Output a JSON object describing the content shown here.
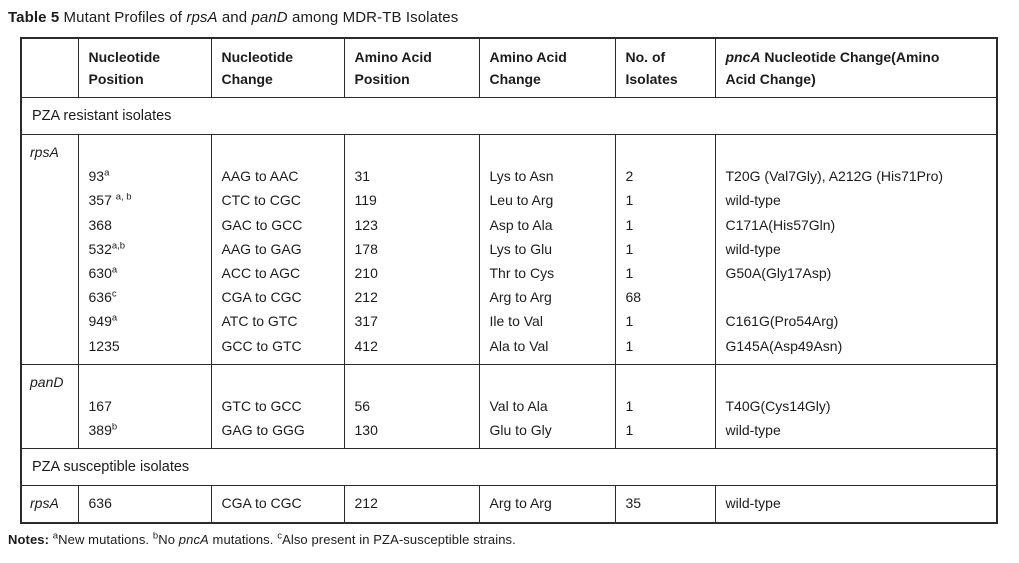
{
  "colors": {
    "background": "#ffffff",
    "text": "#1c1c1c",
    "border": "#2b2b2b"
  },
  "caption": {
    "segments": [
      {
        "text": "Table 5",
        "bold": true
      },
      {
        "text": " Mutant Profiles of "
      },
      {
        "text": "rpsA",
        "italic": true
      },
      {
        "text": " and "
      },
      {
        "text": "panD",
        "italic": true
      },
      {
        "text": " among MDR-TB Isolates"
      }
    ]
  },
  "table": {
    "columns": [
      {
        "name": "gene",
        "segments": []
      },
      {
        "name": "nucleotide-position",
        "segments": [
          {
            "text": "Nucleotide Position",
            "bold": true
          }
        ]
      },
      {
        "name": "nucleotide-change",
        "segments": [
          {
            "text": "Nucleotide Change",
            "bold": true
          }
        ]
      },
      {
        "name": "amino-acid-position",
        "segments": [
          {
            "text": "Amino Acid Position",
            "bold": true
          }
        ]
      },
      {
        "name": "amino-acid-change",
        "segments": [
          {
            "text": "Amino Acid Change",
            "bold": true
          }
        ]
      },
      {
        "name": "no-of-isolates",
        "segments": [
          {
            "text": "No. of Isolates",
            "bold": true
          }
        ]
      },
      {
        "name": "pnca-change",
        "segments": [
          {
            "text": "pncA",
            "bold": true,
            "italic": true
          },
          {
            "text": " Nucleotide Change(Amino",
            "bold": true
          },
          {
            "br": true
          },
          {
            "text": "Acid Change)",
            "bold": true
          }
        ]
      }
    ],
    "sections": [
      {
        "type": "section-header",
        "label": "PZA resistant isolates"
      },
      {
        "type": "gene-block",
        "gene": "rpsA",
        "rows": [
          {
            "position": "93",
            "position_sup": "a",
            "nucleotide_change": "AAG to AAC",
            "amino_acid_position": "31",
            "amino_acid_change": "Lys to Asn",
            "isolates": "2",
            "pnca": "T20G (Val7Gly), A212G (His71Pro)"
          },
          {
            "position": "357 ",
            "position_sup": "a, b",
            "nucleotide_change": "CTC to CGC",
            "amino_acid_position": "119",
            "amino_acid_change": "Leu to Arg",
            "isolates": "1",
            "pnca": "wild-type"
          },
          {
            "position": "368",
            "position_sup": "",
            "nucleotide_change": "GAC to GCC",
            "amino_acid_position": "123",
            "amino_acid_change": "Asp to Ala",
            "isolates": "1",
            "pnca": "C171A(His57Gln)"
          },
          {
            "position": "532",
            "position_sup": "a,b",
            "nucleotide_change": "AAG to GAG",
            "amino_acid_position": "178",
            "amino_acid_change": "Lys to Glu",
            "isolates": "1",
            "pnca": "wild-type"
          },
          {
            "position": "630",
            "position_sup": "a",
            "nucleotide_change": "ACC to AGC",
            "amino_acid_position": "210",
            "amino_acid_change": "Thr to Cys",
            "isolates": "1",
            "pnca": "G50A(Gly17Asp)"
          },
          {
            "position": "636",
            "position_sup": "c",
            "nucleotide_change": "CGA to CGC",
            "amino_acid_position": "212",
            "amino_acid_change": "Arg to Arg",
            "isolates": "68",
            "pnca": ""
          },
          {
            "position": "949",
            "position_sup": "a",
            "nucleotide_change": "ATC to GTC",
            "amino_acid_position": "317",
            "amino_acid_change": "Ile to Val",
            "isolates": "1",
            "pnca": "C161G(Pro54Arg)"
          },
          {
            "position": "1235",
            "position_sup": "",
            "nucleotide_change": "GCC to GTC",
            "amino_acid_position": "412",
            "amino_acid_change": "Ala to Val",
            "isolates": "1",
            "pnca": "G145A(Asp49Asn)"
          }
        ]
      },
      {
        "type": "gene-block",
        "gene": "panD",
        "rows": [
          {
            "position": "167",
            "position_sup": "",
            "nucleotide_change": "GTC to GCC",
            "amino_acid_position": "56",
            "amino_acid_change": "Val to Ala",
            "isolates": "1",
            "pnca": "T40G(Cys14Gly)"
          },
          {
            "position": "389",
            "position_sup": "b",
            "nucleotide_change": "GAG to GGG",
            "amino_acid_position": "130",
            "amino_acid_change": "Glu to Gly",
            "isolates": "1",
            "pnca": "wild-type"
          }
        ]
      },
      {
        "type": "section-header",
        "label": "PZA susceptible isolates"
      },
      {
        "type": "gene-inline-row",
        "gene": "rpsA",
        "rows": [
          {
            "position": "636",
            "position_sup": "",
            "nucleotide_change": "CGA to CGC",
            "amino_acid_position": "212",
            "amino_acid_change": "Arg to Arg",
            "isolates": "35",
            "pnca": "wild-type"
          }
        ]
      }
    ]
  },
  "notes": {
    "segments": [
      {
        "text": "Notes: ",
        "bold": true
      },
      {
        "text": "a",
        "sup": true
      },
      {
        "text": "New mutations. "
      },
      {
        "text": "b",
        "sup": true
      },
      {
        "text": "No "
      },
      {
        "text": "pncA",
        "italic": true
      },
      {
        "text": " mutations. "
      },
      {
        "text": "c",
        "sup": true
      },
      {
        "text": "Also present in PZA-susceptible strains."
      }
    ]
  }
}
